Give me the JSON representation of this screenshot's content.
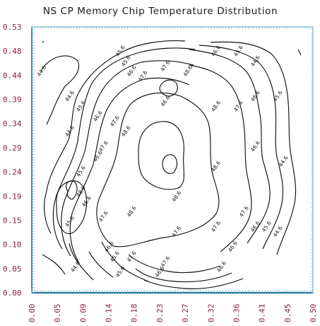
{
  "chart_data": {
    "type": "contour",
    "title": "NS CP Memory Chip Temperature Distribution",
    "x_ticks": [
      "0.00",
      "0.05",
      "0.09",
      "0.14",
      "0.18",
      "0.23",
      "0.27",
      "0.32",
      "0.36",
      "0.41",
      "0.45",
      "0.50"
    ],
    "y_ticks": [
      "0.00",
      "0.05",
      "0.10",
      "0.15",
      "0.19",
      "0.24",
      "0.29",
      "0.34",
      "0.39",
      "0.44",
      "0.48",
      "0.53"
    ],
    "xlim": [
      0,
      0.5
    ],
    "ylim": [
      0,
      0.53
    ],
    "contour_levels": [
      44.6,
      45.6,
      46.6,
      47.6,
      48.6
    ],
    "contour_labels": [
      {
        "text": "44.6",
        "x": 0.02,
        "y": 0.44
      },
      {
        "text": "44.6",
        "x": 0.07,
        "y": 0.39
      },
      {
        "text": "45.6",
        "x": 0.09,
        "y": 0.37
      },
      {
        "text": "45.6",
        "x": 0.16,
        "y": 0.48
      },
      {
        "text": "46.6",
        "x": 0.12,
        "y": 0.35
      },
      {
        "text": "47.6",
        "x": 0.15,
        "y": 0.34
      },
      {
        "text": "45.6",
        "x": 0.17,
        "y": 0.46
      },
      {
        "text": "46.6",
        "x": 0.18,
        "y": 0.44
      },
      {
        "text": "47.6",
        "x": 0.2,
        "y": 0.43
      },
      {
        "text": "47.6",
        "x": 0.24,
        "y": 0.45
      },
      {
        "text": "46.6",
        "x": 0.24,
        "y": 0.38
      },
      {
        "text": "48.6",
        "x": 0.33,
        "y": 0.37
      },
      {
        "text": "48.6",
        "x": 0.17,
        "y": 0.32
      },
      {
        "text": "48.6",
        "x": 0.28,
        "y": 0.44
      },
      {
        "text": "46.6",
        "x": 0.33,
        "y": 0.48
      },
      {
        "text": "45.6",
        "x": 0.37,
        "y": 0.48
      },
      {
        "text": "44.6",
        "x": 0.4,
        "y": 0.46
      },
      {
        "text": "47.6",
        "x": 0.37,
        "y": 0.37
      },
      {
        "text": "46.6",
        "x": 0.4,
        "y": 0.39
      },
      {
        "text": "45.6",
        "x": 0.44,
        "y": 0.39
      },
      {
        "text": "44.6",
        "x": 0.07,
        "y": 0.32
      },
      {
        "text": "45.6",
        "x": 0.09,
        "y": 0.24
      },
      {
        "text": "46.6",
        "x": 0.12,
        "y": 0.27
      },
      {
        "text": "47.6",
        "x": 0.13,
        "y": 0.29
      },
      {
        "text": "46.6",
        "x": 0.4,
        "y": 0.29
      },
      {
        "text": "44.6",
        "x": 0.45,
        "y": 0.26
      },
      {
        "text": "48.6",
        "x": 0.33,
        "y": 0.25
      },
      {
        "text": "48.6",
        "x": 0.09,
        "y": 0.2
      },
      {
        "text": "45.6",
        "x": 0.07,
        "y": 0.14
      },
      {
        "text": "46.6",
        "x": 0.1,
        "y": 0.18
      },
      {
        "text": "47.6",
        "x": 0.13,
        "y": 0.15
      },
      {
        "text": "48.6",
        "x": 0.18,
        "y": 0.16
      },
      {
        "text": "48.6",
        "x": 0.26,
        "y": 0.19
      },
      {
        "text": "47.6",
        "x": 0.38,
        "y": 0.16
      },
      {
        "text": "46.6",
        "x": 0.4,
        "y": 0.13
      },
      {
        "text": "45.6",
        "x": 0.42,
        "y": 0.13
      },
      {
        "text": "44.6",
        "x": 0.44,
        "y": 0.12
      },
      {
        "text": "47.6",
        "x": 0.26,
        "y": 0.12
      },
      {
        "text": "47.6",
        "x": 0.33,
        "y": 0.13
      },
      {
        "text": "46.6",
        "x": 0.14,
        "y": 0.09
      },
      {
        "text": "45.6",
        "x": 0.15,
        "y": 0.07
      },
      {
        "text": "44.6",
        "x": 0.08,
        "y": 0.05
      },
      {
        "text": "45.6",
        "x": 0.16,
        "y": 0.04
      },
      {
        "text": "47.6",
        "x": 0.18,
        "y": 0.07
      },
      {
        "text": "46.6",
        "x": 0.23,
        "y": 0.04
      },
      {
        "text": "47.6",
        "x": 0.24,
        "y": 0.06
      },
      {
        "text": "46.6",
        "x": 0.34,
        "y": 0.05
      },
      {
        "text": "46.6",
        "x": 0.36,
        "y": 0.09
      }
    ],
    "grid": false,
    "colors": {
      "text": "#1a1a1a",
      "ticks": "#8a1f4f",
      "frame": "#6fb3c8",
      "lines": "#111111"
    }
  }
}
